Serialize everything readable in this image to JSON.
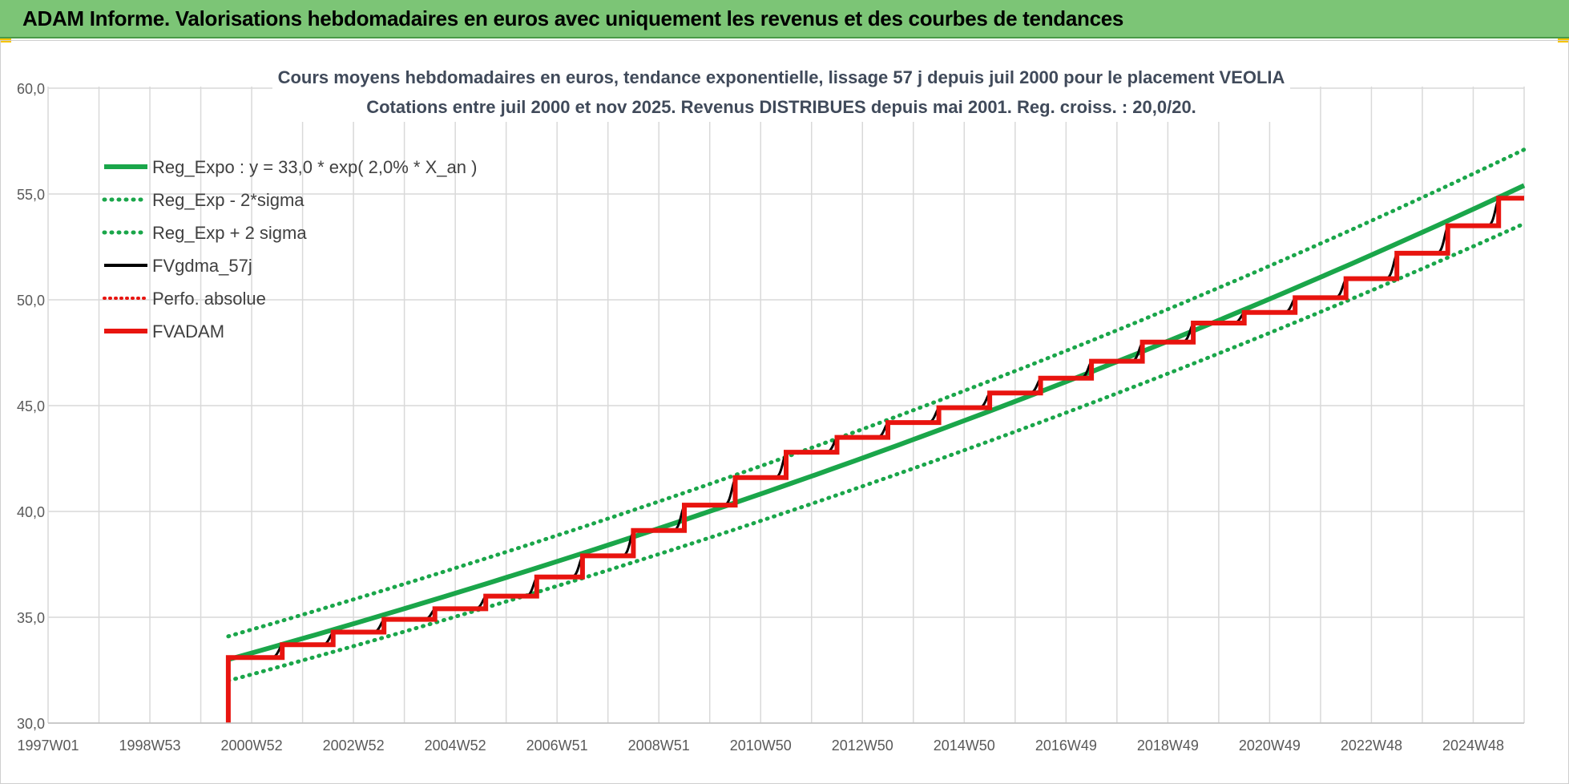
{
  "banner": {
    "title": "ADAM Informe. Valorisations hebdomadaires en euros avec uniquement les revenus et des courbes de tendances"
  },
  "colors": {
    "banner_bg": "#7cc576",
    "reg_green": "#1aa64a",
    "fvgdma_black": "#000000",
    "fvadam_red": "#e8140f",
    "grid": "#d9d9d9",
    "corner_accent": "#f5c400"
  },
  "chart_data": {
    "type": "line",
    "title_line1": "Cours moyens hebdomadaires en euros, tendance exponentielle, lissage 57 j depuis juil 2000 pour le placement VEOLIA",
    "title_line2": "Cotations entre juil 2000 et nov 2025. Revenus DISTRIBUES depuis mai 2001. Reg. croiss. : 20,0/20.",
    "xlabel": "",
    "ylabel": "",
    "ylim": [
      30,
      60
    ],
    "xlim": [
      1997.0,
      2026.0
    ],
    "y_ticks": [
      30,
      35,
      40,
      45,
      50,
      55,
      60
    ],
    "y_tick_labels": [
      "30,0",
      "35,0",
      "40,0",
      "45,0",
      "50,0",
      "55,0",
      "60,0"
    ],
    "x_ticks": [
      {
        "label": "1997W01",
        "year": 1997.0
      },
      {
        "label": "1998W53",
        "year": 1999.0
      },
      {
        "label": "2000W52",
        "year": 2001.0
      },
      {
        "label": "2002W52",
        "year": 2003.0
      },
      {
        "label": "2004W52",
        "year": 2005.0
      },
      {
        "label": "2006W51",
        "year": 2007.0
      },
      {
        "label": "2008W51",
        "year": 2009.0
      },
      {
        "label": "2010W50",
        "year": 2011.0
      },
      {
        "label": "2012W50",
        "year": 2013.0
      },
      {
        "label": "2014W50",
        "year": 2015.0
      },
      {
        "label": "2016W49",
        "year": 2017.0
      },
      {
        "label": "2018W49",
        "year": 2019.0
      },
      {
        "label": "2020W49",
        "year": 2021.0
      },
      {
        "label": "2022W48",
        "year": 2023.0
      },
      {
        "label": "2024W48",
        "year": 2025.0
      }
    ],
    "grid": true,
    "legend_position": "top-left",
    "series": [
      {
        "name": "Reg_Expo : y = 33,0 * exp( 2,0% *  X_an )",
        "style": "solid-thick",
        "color": "#1aa64a",
        "x": [
          2000.54,
          2026.0
        ],
        "y": [
          33.0,
          55.4
        ]
      },
      {
        "name": "Reg_Exp - 2*sigma",
        "style": "dotted",
        "color": "#1aa64a",
        "x": [
          2000.54,
          2026.0
        ],
        "y": [
          32.0,
          53.6
        ]
      },
      {
        "name": "Reg_Exp + 2 sigma",
        "style": "dotted",
        "color": "#1aa64a",
        "x": [
          2000.54,
          2026.0
        ],
        "y": [
          34.1,
          57.1
        ]
      },
      {
        "name": "FVgdma_57j",
        "style": "solid",
        "color": "#000000",
        "steps": [
          [
            2000.54,
            33.1
          ],
          [
            2001.6,
            33.7
          ],
          [
            2002.6,
            34.3
          ],
          [
            2003.6,
            34.9
          ],
          [
            2004.6,
            35.4
          ],
          [
            2005.6,
            36.0
          ],
          [
            2006.6,
            36.9
          ],
          [
            2007.5,
            37.9
          ],
          [
            2008.5,
            39.1
          ],
          [
            2009.5,
            40.3
          ],
          [
            2010.5,
            41.6
          ],
          [
            2011.5,
            42.8
          ],
          [
            2012.5,
            43.5
          ],
          [
            2013.5,
            44.2
          ],
          [
            2014.5,
            44.9
          ],
          [
            2015.5,
            45.6
          ],
          [
            2016.5,
            46.3
          ],
          [
            2017.5,
            47.1
          ],
          [
            2018.5,
            48.0
          ],
          [
            2019.5,
            48.9
          ],
          [
            2020.5,
            49.4
          ],
          [
            2021.5,
            50.1
          ],
          [
            2022.5,
            51.0
          ],
          [
            2023.5,
            52.2
          ],
          [
            2024.5,
            53.5
          ],
          [
            2025.5,
            54.8
          ]
        ],
        "x_end": 2026.0
      },
      {
        "name": "Perfo. absolue",
        "style": "dotted",
        "color": "#e8140f"
      },
      {
        "name": "FVADAM",
        "style": "solid-thick",
        "color": "#e8140f",
        "steps": [
          [
            2000.54,
            33.1
          ],
          [
            2001.6,
            33.7
          ],
          [
            2002.6,
            34.3
          ],
          [
            2003.6,
            34.9
          ],
          [
            2004.6,
            35.4
          ],
          [
            2005.6,
            36.0
          ],
          [
            2006.6,
            36.9
          ],
          [
            2007.5,
            37.9
          ],
          [
            2008.5,
            39.1
          ],
          [
            2009.5,
            40.3
          ],
          [
            2010.5,
            41.6
          ],
          [
            2011.5,
            42.8
          ],
          [
            2012.5,
            43.5
          ],
          [
            2013.5,
            44.2
          ],
          [
            2014.5,
            44.9
          ],
          [
            2015.5,
            45.6
          ],
          [
            2016.5,
            46.3
          ],
          [
            2017.5,
            47.1
          ],
          [
            2018.5,
            48.0
          ],
          [
            2019.5,
            48.9
          ],
          [
            2020.5,
            49.4
          ],
          [
            2021.5,
            50.1
          ],
          [
            2022.5,
            51.0
          ],
          [
            2023.5,
            52.2
          ],
          [
            2024.5,
            53.5
          ],
          [
            2025.5,
            54.8
          ]
        ],
        "start_y": 30.0,
        "x_end": 2026.0
      }
    ]
  }
}
